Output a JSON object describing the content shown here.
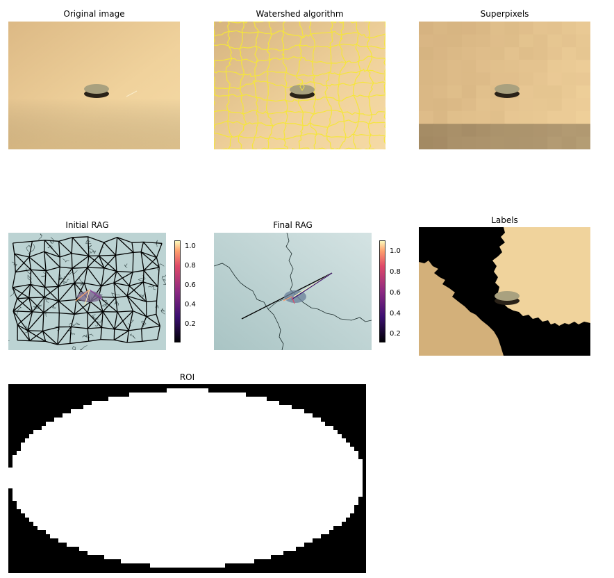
{
  "figure": {
    "titles": {
      "original": "Original image",
      "watershed": "Watershed algorithm",
      "superpixels": "Superpixels",
      "initial_rag": "Initial RAG",
      "final_rag": "Final RAG",
      "labels": "Labels",
      "roi": "ROI"
    },
    "colorbars": {
      "initial_rag": {
        "ticks": [
          "1.0",
          "0.8",
          "0.6",
          "0.4",
          "0.2"
        ],
        "colormap": "magma"
      },
      "final_rag": {
        "ticks": [
          "1.0",
          "0.8",
          "0.6",
          "0.4",
          "0.2"
        ],
        "colormap": "magma"
      }
    },
    "colors": {
      "background_beige": "#e9c690",
      "background_light": "#f3d8a2",
      "coin": "#a9a17f",
      "coin_shadow": "#2a2218",
      "watershed_lines": "#f5e63a",
      "rag_background": "#bcd3d3",
      "labels_beige": "#f0d39c",
      "labels_tan": "#d3b07a",
      "labels_black": "#000000"
    }
  }
}
